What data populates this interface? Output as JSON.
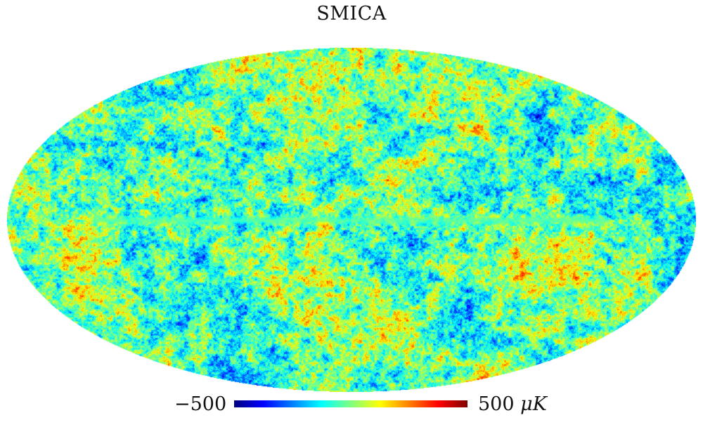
{
  "title": "SMICA",
  "colorbar": {
    "min_label": "−500",
    "max_label": "500",
    "unit_label": "μK",
    "colormap": "jet",
    "stops": [
      "#00007f",
      "#0000ff",
      "#007fff",
      "#00ffff",
      "#7fff7f",
      "#ffff00",
      "#ff7f00",
      "#ff0000",
      "#7f0000"
    ]
  },
  "map": {
    "projection": "mollweide",
    "content": "cmb-temperature-anisotropy"
  }
}
